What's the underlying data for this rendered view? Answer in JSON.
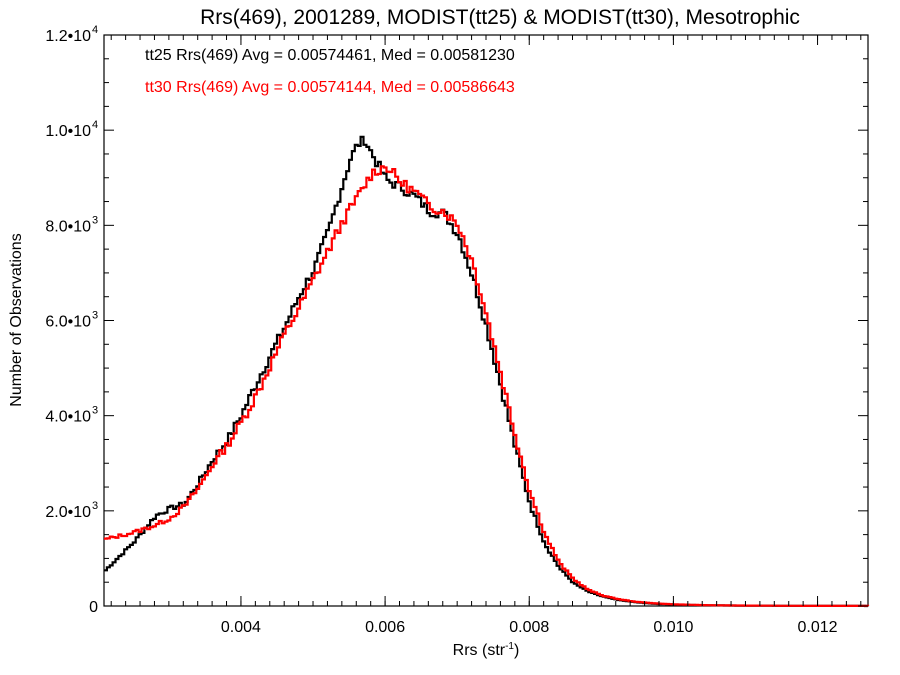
{
  "chart_data": {
    "type": "line",
    "title": "Rrs(469), 2001289, MODIST(tt25) & MODIST(tt30), Mesotrophic",
    "xlabel_base": "Rrs (str",
    "xlabel_sup": "-1",
    "xlabel_close": ")",
    "ylabel": "Number of Observations",
    "xlim": [
      0.0021,
      0.0127
    ],
    "ylim": [
      0,
      12000
    ],
    "x_ticks": [
      {
        "value": 0.004,
        "label": "0.004"
      },
      {
        "value": 0.006,
        "label": "0.006"
      },
      {
        "value": 0.008,
        "label": "0.008"
      },
      {
        "value": 0.01,
        "label": "0.010"
      },
      {
        "value": 0.012,
        "label": "0.012"
      }
    ],
    "y_ticks": [
      {
        "value": 0,
        "mant": "0",
        "exp": ""
      },
      {
        "value": 2000,
        "mant": "2.0•10",
        "exp": "3"
      },
      {
        "value": 4000,
        "mant": "4.0•10",
        "exp": "3"
      },
      {
        "value": 6000,
        "mant": "6.0•10",
        "exp": "3"
      },
      {
        "value": 8000,
        "mant": "8.0•10",
        "exp": "3"
      },
      {
        "value": 10000,
        "mant": "1.0•10",
        "exp": "4"
      },
      {
        "value": 12000,
        "mant": "1.2•10",
        "exp": "4"
      }
    ],
    "annotations": [
      {
        "text": "tt25 Rrs(469) Avg = 0.00574461, Med = 0.00581230",
        "color": "#000000"
      },
      {
        "text": "tt30 Rrs(469) Avg = 0.00574144, Med = 0.00586643",
        "color": "#ff0000"
      }
    ],
    "series": [
      {
        "color": "#000000",
        "x": [
          0.0021,
          0.0025,
          0.0028,
          0.003,
          0.0032,
          0.0034,
          0.0036,
          0.0038,
          0.004,
          0.0042,
          0.0044,
          0.0046,
          0.0048,
          0.005,
          0.0052,
          0.0054,
          0.0055,
          0.0056,
          0.0057,
          0.0058,
          0.006,
          0.0062,
          0.0064,
          0.0066,
          0.0068,
          0.007,
          0.0072,
          0.0074,
          0.0076,
          0.0078,
          0.008,
          0.0082,
          0.0084,
          0.0086,
          0.0088,
          0.009,
          0.0092,
          0.0094,
          0.0096,
          0.0098,
          0.01,
          0.0104,
          0.0108,
          0.0112,
          0.0116,
          0.012,
          0.0127
        ],
        "y": [
          750,
          1350,
          1900,
          2050,
          2150,
          2600,
          3100,
          3500,
          4050,
          4700,
          5300,
          5900,
          6550,
          7100,
          7900,
          8900,
          9400,
          9700,
          9800,
          9500,
          8950,
          8800,
          8600,
          8300,
          8250,
          7800,
          6900,
          5800,
          4550,
          3250,
          2100,
          1300,
          800,
          480,
          300,
          200,
          130,
          90,
          60,
          40,
          30,
          15,
          10,
          6,
          4,
          2,
          1
        ]
      },
      {
        "color": "#ff0000",
        "x": [
          0.0021,
          0.0025,
          0.0028,
          0.003,
          0.0032,
          0.0034,
          0.0036,
          0.0038,
          0.004,
          0.0042,
          0.0044,
          0.0046,
          0.0048,
          0.005,
          0.0052,
          0.0054,
          0.0056,
          0.0058,
          0.006,
          0.0062,
          0.0064,
          0.0066,
          0.0068,
          0.007,
          0.0072,
          0.0074,
          0.0076,
          0.0078,
          0.008,
          0.0082,
          0.0084,
          0.0086,
          0.0088,
          0.009,
          0.0092,
          0.0094,
          0.0096,
          0.0098,
          0.01,
          0.0104,
          0.0108,
          0.0112,
          0.0116,
          0.012,
          0.0127
        ],
        "y": [
          1400,
          1550,
          1700,
          1850,
          2100,
          2500,
          3000,
          3400,
          3900,
          4450,
          5100,
          5750,
          6300,
          6900,
          7500,
          8100,
          8600,
          9100,
          9250,
          8900,
          8700,
          8400,
          8300,
          8000,
          7200,
          6050,
          4800,
          3500,
          2350,
          1500,
          900,
          560,
          340,
          220,
          150,
          100,
          70,
          48,
          35,
          18,
          11,
          7,
          4,
          2,
          1
        ]
      }
    ]
  }
}
